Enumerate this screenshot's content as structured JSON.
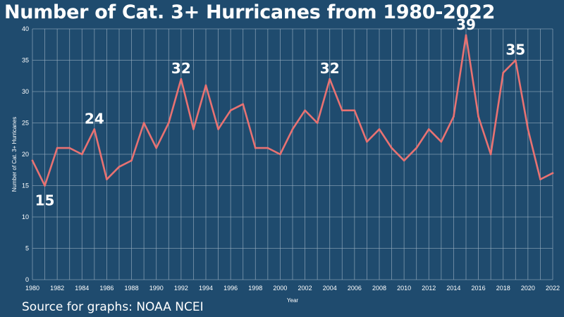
{
  "title": "Number of Cat. 3+ Hurricanes from 1980-2022",
  "source": "Source for graphs: NOAA NCEI",
  "colors": {
    "background": "#1f4b6e",
    "line": "#e87272",
    "grid": "#9fb3c4",
    "text": "#ffffff"
  },
  "chart_data": {
    "type": "line",
    "title": "Number of Cat. 3+ Hurricanes from 1980-2022",
    "xlabel": "Year",
    "ylabel": "Number of Cat. 3+ Hurricanes",
    "xlim": [
      1980,
      2022
    ],
    "ylim": [
      0,
      40
    ],
    "grid": true,
    "x": [
      1980,
      1981,
      1982,
      1983,
      1984,
      1985,
      1986,
      1987,
      1988,
      1989,
      1990,
      1991,
      1992,
      1993,
      1994,
      1995,
      1996,
      1997,
      1998,
      1999,
      2000,
      2001,
      2002,
      2003,
      2004,
      2005,
      2006,
      2007,
      2008,
      2009,
      2010,
      2011,
      2012,
      2013,
      2014,
      2015,
      2016,
      2017,
      2018,
      2019,
      2020,
      2021,
      2022
    ],
    "series": [
      {
        "values": [
          19,
          15,
          21,
          21,
          20,
          24,
          16,
          18,
          19,
          25,
          21,
          25,
          32,
          24,
          31,
          24,
          27,
          28,
          21,
          21,
          20,
          24,
          27,
          25,
          32,
          27,
          27,
          22,
          24,
          21,
          19,
          21,
          24,
          22,
          26,
          39,
          26,
          20,
          33,
          35,
          24,
          16,
          17
        ]
      }
    ],
    "x_ticks": [
      "1980",
      "1982",
      "1984",
      "1986",
      "1988",
      "1990",
      "1992",
      "1994",
      "1996",
      "1998",
      "2000",
      "2002",
      "2004",
      "2006",
      "2008",
      "2010",
      "2012",
      "2014",
      "2016",
      "2018",
      "2020",
      "2022"
    ],
    "y_ticks": [
      "0",
      "5",
      "10",
      "15",
      "20",
      "25",
      "30",
      "35",
      "40"
    ],
    "annotations": [
      {
        "x": 1981,
        "y": 15,
        "text": "15",
        "pos": "below"
      },
      {
        "x": 1985,
        "y": 24,
        "text": "24",
        "pos": "above"
      },
      {
        "x": 1992,
        "y": 32,
        "text": "32",
        "pos": "above"
      },
      {
        "x": 2004,
        "y": 32,
        "text": "32",
        "pos": "above"
      },
      {
        "x": 2015,
        "y": 39,
        "text": "39",
        "pos": "above"
      },
      {
        "x": 2019,
        "y": 35,
        "text": "35",
        "pos": "above"
      }
    ]
  }
}
